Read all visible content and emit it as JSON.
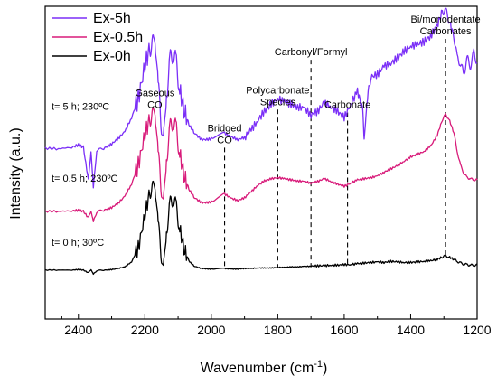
{
  "chart_data": {
    "type": "line",
    "title": "",
    "xlabel": "Wavenumber (cm",
    "xlabel_sup": "-1",
    "xlabel_close": ")",
    "ylabel": "Intensity (a.u.)",
    "xlim": [
      2500,
      1200
    ],
    "x_reversed": true,
    "x_ticks": [
      2400,
      2200,
      2000,
      1800,
      1600,
      1400,
      1200
    ],
    "y_ticks": "none",
    "grid": false,
    "legend_position": "top-left",
    "colors": {
      "ex5h": "#7b2ff7",
      "ex05h": "#d81b7a",
      "ex0h": "#000000"
    },
    "series": [
      {
        "name": "Ex-5h",
        "trace_label": "t= 5 h; 230ºC",
        "offset": 2.2,
        "points": [
          [
            2500,
            0.04
          ],
          [
            2460,
            0.03
          ],
          [
            2420,
            0.06
          ],
          [
            2400,
            0.1
          ],
          [
            2385,
            0.06
          ],
          [
            2370,
            -0.55
          ],
          [
            2362,
            -0.05
          ],
          [
            2355,
            -0.7
          ],
          [
            2345,
            0.0
          ],
          [
            2320,
            0.05
          ],
          [
            2300,
            0.12
          ],
          [
            2280,
            0.22
          ],
          [
            2260,
            0.35
          ],
          [
            2240,
            0.6
          ],
          [
            2220,
            0.95
          ],
          [
            2200,
            1.55
          ],
          [
            2185,
            1.9
          ],
          [
            2175,
            1.95
          ],
          [
            2168,
            1.8
          ],
          [
            2160,
            1.2
          ],
          [
            2150,
            0.45
          ],
          [
            2143,
            0.35
          ],
          [
            2135,
            1.0
          ],
          [
            2125,
            1.65
          ],
          [
            2115,
            1.8
          ],
          [
            2105,
            1.6
          ],
          [
            2095,
            1.1
          ],
          [
            2080,
            0.7
          ],
          [
            2065,
            0.45
          ],
          [
            2050,
            0.32
          ],
          [
            2030,
            0.2
          ],
          [
            2010,
            0.2
          ],
          [
            1990,
            0.24
          ],
          [
            1960,
            0.32
          ],
          [
            1940,
            0.25
          ],
          [
            1920,
            0.2
          ],
          [
            1900,
            0.24
          ],
          [
            1880,
            0.38
          ],
          [
            1860,
            0.55
          ],
          [
            1840,
            0.72
          ],
          [
            1820,
            0.85
          ],
          [
            1800,
            0.95
          ],
          [
            1780,
            0.9
          ],
          [
            1760,
            0.85
          ],
          [
            1740,
            0.8
          ],
          [
            1720,
            0.78
          ],
          [
            1700,
            0.65
          ],
          [
            1680,
            0.72
          ],
          [
            1660,
            0.88
          ],
          [
            1640,
            0.8
          ],
          [
            1620,
            0.72
          ],
          [
            1600,
            0.6
          ],
          [
            1580,
            0.85
          ],
          [
            1560,
            1.1
          ],
          [
            1545,
            0.75
          ],
          [
            1540,
            0.25
          ],
          [
            1532,
            0.9
          ],
          [
            1520,
            1.35
          ],
          [
            1500,
            1.4
          ],
          [
            1480,
            1.55
          ],
          [
            1460,
            1.6
          ],
          [
            1440,
            1.7
          ],
          [
            1420,
            1.82
          ],
          [
            1400,
            1.92
          ],
          [
            1380,
            1.95
          ],
          [
            1360,
            2.0
          ],
          [
            1340,
            2.1
          ],
          [
            1320,
            2.3
          ],
          [
            1305,
            2.55
          ],
          [
            1295,
            2.58
          ],
          [
            1285,
            2.4
          ],
          [
            1270,
            2.1
          ],
          [
            1260,
            1.7
          ],
          [
            1250,
            1.6
          ],
          [
            1240,
            1.4
          ],
          [
            1230,
            1.7
          ],
          [
            1220,
            1.55
          ],
          [
            1210,
            1.8
          ],
          [
            1200,
            1.6
          ]
        ]
      },
      {
        "name": "Ex-0.5h",
        "trace_label": "t= 0.5 h; 230ºC",
        "offset": 1.08,
        "points": [
          [
            2500,
            0.0
          ],
          [
            2460,
            0.0
          ],
          [
            2420,
            0.01
          ],
          [
            2400,
            0.02
          ],
          [
            2385,
            0.0
          ],
          [
            2370,
            -0.12
          ],
          [
            2362,
            -0.02
          ],
          [
            2355,
            -0.2
          ],
          [
            2345,
            -0.01
          ],
          [
            2320,
            0.03
          ],
          [
            2300,
            0.07
          ],
          [
            2280,
            0.15
          ],
          [
            2260,
            0.28
          ],
          [
            2240,
            0.5
          ],
          [
            2220,
            0.85
          ],
          [
            2200,
            1.4
          ],
          [
            2185,
            1.72
          ],
          [
            2175,
            1.76
          ],
          [
            2168,
            1.62
          ],
          [
            2160,
            1.05
          ],
          [
            2150,
            0.4
          ],
          [
            2143,
            0.3
          ],
          [
            2135,
            0.95
          ],
          [
            2125,
            1.52
          ],
          [
            2115,
            1.66
          ],
          [
            2105,
            1.5
          ],
          [
            2095,
            1.05
          ],
          [
            2080,
            0.62
          ],
          [
            2065,
            0.38
          ],
          [
            2050,
            0.25
          ],
          [
            2030,
            0.16
          ],
          [
            2010,
            0.16
          ],
          [
            1990,
            0.2
          ],
          [
            1960,
            0.32
          ],
          [
            1940,
            0.24
          ],
          [
            1920,
            0.2
          ],
          [
            1900,
            0.25
          ],
          [
            1880,
            0.36
          ],
          [
            1860,
            0.48
          ],
          [
            1840,
            0.56
          ],
          [
            1820,
            0.6
          ],
          [
            1800,
            0.62
          ],
          [
            1780,
            0.6
          ],
          [
            1760,
            0.58
          ],
          [
            1740,
            0.56
          ],
          [
            1720,
            0.55
          ],
          [
            1700,
            0.52
          ],
          [
            1680,
            0.55
          ],
          [
            1660,
            0.6
          ],
          [
            1640,
            0.55
          ],
          [
            1620,
            0.5
          ],
          [
            1600,
            0.46
          ],
          [
            1580,
            0.52
          ],
          [
            1560,
            0.58
          ],
          [
            1540,
            0.6
          ],
          [
            1520,
            0.62
          ],
          [
            1500,
            0.65
          ],
          [
            1480,
            0.72
          ],
          [
            1460,
            0.78
          ],
          [
            1440,
            0.84
          ],
          [
            1420,
            0.92
          ],
          [
            1400,
            1.0
          ],
          [
            1380,
            1.05
          ],
          [
            1360,
            1.1
          ],
          [
            1340,
            1.2
          ],
          [
            1320,
            1.4
          ],
          [
            1305,
            1.68
          ],
          [
            1295,
            1.78
          ],
          [
            1285,
            1.7
          ],
          [
            1270,
            1.45
          ],
          [
            1260,
            1.1
          ],
          [
            1250,
            0.85
          ],
          [
            1240,
            0.7
          ],
          [
            1230,
            0.62
          ],
          [
            1220,
            0.6
          ],
          [
            1210,
            0.58
          ],
          [
            1200,
            0.58
          ]
        ]
      },
      {
        "name": "Ex-0h",
        "trace_label": "t= 0 h; 30ºC",
        "offset": 0.0,
        "points": [
          [
            2500,
            0.0
          ],
          [
            2460,
            0.0
          ],
          [
            2420,
            0.0
          ],
          [
            2400,
            0.01
          ],
          [
            2385,
            0.0
          ],
          [
            2370,
            -0.05
          ],
          [
            2362,
            0.0
          ],
          [
            2355,
            -0.08
          ],
          [
            2345,
            -0.01
          ],
          [
            2320,
            0.0
          ],
          [
            2300,
            0.01
          ],
          [
            2280,
            0.03
          ],
          [
            2260,
            0.06
          ],
          [
            2240,
            0.15
          ],
          [
            2220,
            0.4
          ],
          [
            2200,
            1.0
          ],
          [
            2185,
            1.45
          ],
          [
            2175,
            1.5
          ],
          [
            2168,
            1.35
          ],
          [
            2160,
            0.85
          ],
          [
            2150,
            0.25
          ],
          [
            2143,
            0.15
          ],
          [
            2135,
            0.7
          ],
          [
            2125,
            1.2
          ],
          [
            2115,
            1.32
          ],
          [
            2105,
            1.15
          ],
          [
            2095,
            0.75
          ],
          [
            2080,
            0.35
          ],
          [
            2065,
            0.15
          ],
          [
            2050,
            0.07
          ],
          [
            2030,
            0.03
          ],
          [
            2010,
            0.02
          ],
          [
            1990,
            0.02
          ],
          [
            1960,
            0.03
          ],
          [
            1940,
            0.02
          ],
          [
            1920,
            0.02
          ],
          [
            1900,
            0.03
          ],
          [
            1880,
            0.03
          ],
          [
            1860,
            0.04
          ],
          [
            1840,
            0.04
          ],
          [
            1820,
            0.04
          ],
          [
            1800,
            0.05
          ],
          [
            1780,
            0.05
          ],
          [
            1760,
            0.06
          ],
          [
            1740,
            0.06
          ],
          [
            1720,
            0.07
          ],
          [
            1700,
            0.07
          ],
          [
            1680,
            0.08
          ],
          [
            1660,
            0.08
          ],
          [
            1640,
            0.09
          ],
          [
            1620,
            0.09
          ],
          [
            1600,
            0.1
          ],
          [
            1580,
            0.1
          ],
          [
            1560,
            0.12
          ],
          [
            1540,
            0.13
          ],
          [
            1520,
            0.14
          ],
          [
            1500,
            0.15
          ],
          [
            1480,
            0.14
          ],
          [
            1460,
            0.16
          ],
          [
            1440,
            0.15
          ],
          [
            1420,
            0.14
          ],
          [
            1400,
            0.14
          ],
          [
            1380,
            0.15
          ],
          [
            1360,
            0.16
          ],
          [
            1340,
            0.17
          ],
          [
            1320,
            0.2
          ],
          [
            1305,
            0.24
          ],
          [
            1295,
            0.26
          ],
          [
            1285,
            0.24
          ],
          [
            1270,
            0.2
          ],
          [
            1260,
            0.16
          ],
          [
            1250,
            0.13
          ],
          [
            1240,
            0.11
          ],
          [
            1230,
            0.1
          ],
          [
            1220,
            0.09
          ],
          [
            1210,
            0.09
          ],
          [
            1200,
            0.09
          ]
        ]
      }
    ],
    "annotations": [
      {
        "lines": [
          "Gaseous",
          "CO"
        ],
        "x": 2170,
        "anchor_y": 3.2,
        "dashed_to": null
      },
      {
        "lines": [
          "Bridged",
          "CO"
        ],
        "x": 1960,
        "anchor_y": 2.55,
        "dashed_to": 1960
      },
      {
        "lines": [
          "Polycarbonate",
          "Species"
        ],
        "x": 1800,
        "anchor_y": 3.25,
        "dashed_to": 1800
      },
      {
        "lines": [
          "Carbonyl/Formyl"
        ],
        "x": 1700,
        "anchor_y": 3.95,
        "dashed_to": 1700
      },
      {
        "lines": [
          "Carbonate"
        ],
        "x": 1590,
        "anchor_y": 2.98,
        "dashed_to": 1590
      },
      {
        "lines": [
          "Bi/monodentate",
          "Carbonates"
        ],
        "x": 1295,
        "anchor_y": 4.55,
        "dashed_to": 1295
      }
    ]
  }
}
